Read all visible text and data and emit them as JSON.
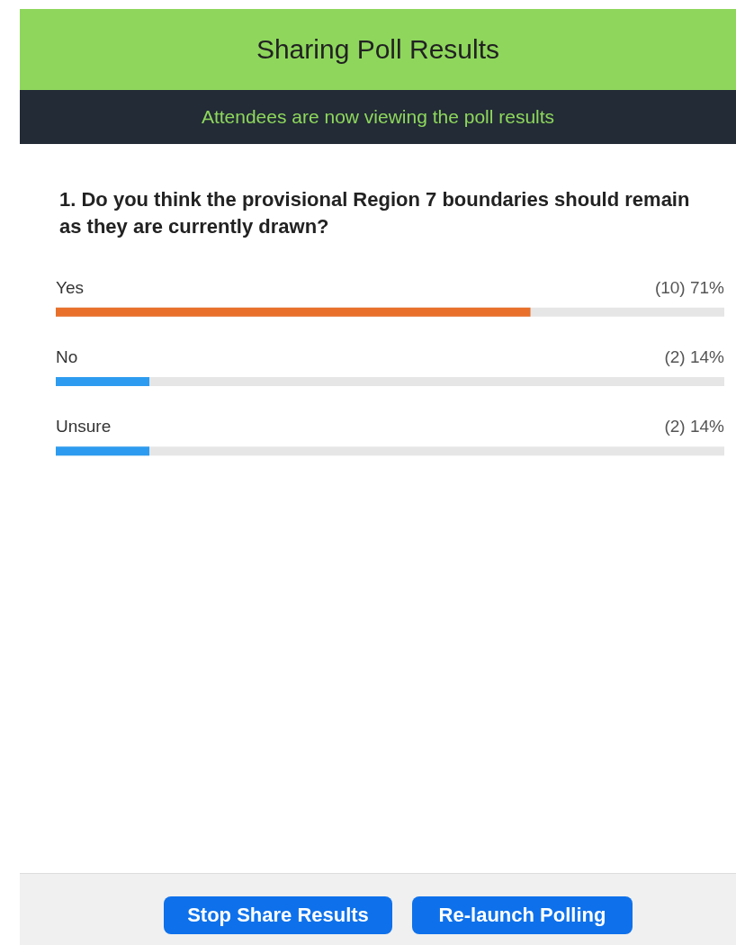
{
  "chart_data": {
    "type": "bar",
    "orientation": "horizontal",
    "title": "Sharing Poll Results",
    "subtitle": "Attendees are now viewing the poll results",
    "annotations": [
      "1. Do you think the provisional Region 7 boundaries should remain as they are currently drawn?",
      "Stop Share Results",
      "Re-launch Polling"
    ],
    "categories": [
      "Yes",
      "No",
      "Unsure"
    ],
    "values": [
      71,
      14,
      14
    ],
    "value_labels": [
      "(10) 71%",
      "(2) 14%",
      "(2) 14%"
    ],
    "colors": [
      "#e8702a",
      "#2d9cf0",
      "#2d9cf0"
    ],
    "xlim": [
      0,
      100
    ]
  }
}
